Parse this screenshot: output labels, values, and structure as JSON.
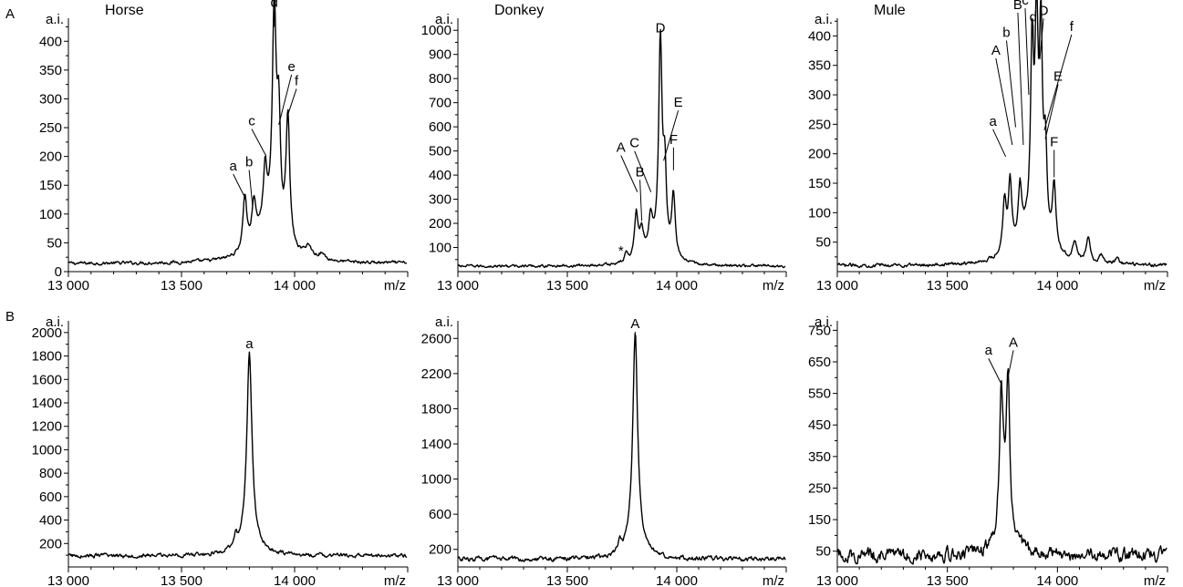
{
  "chart_data": [
    {
      "type": "line",
      "row_label": "A",
      "title": "Horse",
      "ylabel": "a.i.",
      "xlabel": "m/z",
      "xlim": [
        13000,
        14500
      ],
      "ylim": [
        0,
        440
      ],
      "xticks": [
        13000,
        13500,
        14000
      ],
      "xtick_labels": [
        "13 000",
        "13 500",
        "14 000"
      ],
      "yticks": [
        0,
        50,
        100,
        150,
        200,
        250,
        300,
        350,
        400
      ],
      "baseline": 14,
      "noise": 2,
      "peaks": [
        {
          "x": 13780,
          "h": 95,
          "w": 10
        },
        {
          "x": 13820,
          "h": 70,
          "w": 10
        },
        {
          "x": 13870,
          "h": 95,
          "w": 10
        },
        {
          "x": 13910,
          "h": 380,
          "w": 10
        },
        {
          "x": 13930,
          "h": 190,
          "w": 9
        },
        {
          "x": 13970,
          "h": 225,
          "w": 10
        },
        {
          "x": 13880,
          "h": 60,
          "w": 70
        },
        {
          "x": 14060,
          "h": 20,
          "w": 18
        },
        {
          "x": 14120,
          "h": 10,
          "w": 18
        }
      ],
      "annotations": [
        {
          "label": "a",
          "x": 13785,
          "y": 125,
          "dx": -14,
          "dy": 28
        },
        {
          "label": "b",
          "x": 13815,
          "y": 110,
          "dx": -4,
          "dy": 42
        },
        {
          "label": "c",
          "x": 13875,
          "y": 200,
          "dx": -16,
          "dy": 30
        },
        {
          "label": "d",
          "x": 13910,
          "y": 425,
          "dx": 0,
          "dy": 18
        },
        {
          "label": "e",
          "x": 13930,
          "y": 255,
          "dx": 14,
          "dy": 55
        },
        {
          "label": "f",
          "x": 13968,
          "y": 270,
          "dx": 10,
          "dy": 30
        }
      ]
    },
    {
      "type": "line",
      "row_label": "",
      "title": "Donkey",
      "ylabel": "a.i.",
      "xlabel": "m/z",
      "xlim": [
        13000,
        14500
      ],
      "ylim": [
        0,
        1050
      ],
      "xticks": [
        13000,
        13500,
        14000
      ],
      "xtick_labels": [
        "13 000",
        "13 500",
        "14 000"
      ],
      "yticks": [
        100,
        200,
        300,
        400,
        500,
        600,
        700,
        800,
        900,
        1000
      ],
      "baseline": 22,
      "noise": 4,
      "peaks": [
        {
          "x": 13770,
          "h": 40,
          "w": 8
        },
        {
          "x": 13815,
          "h": 190,
          "w": 10
        },
        {
          "x": 13840,
          "h": 100,
          "w": 10
        },
        {
          "x": 13880,
          "h": 130,
          "w": 10
        },
        {
          "x": 13925,
          "h": 860,
          "w": 9
        },
        {
          "x": 13945,
          "h": 330,
          "w": 9
        },
        {
          "x": 13985,
          "h": 260,
          "w": 10
        },
        {
          "x": 13900,
          "h": 70,
          "w": 55
        }
      ],
      "annotations": [
        {
          "label": "A",
          "x": 13820,
          "y": 330,
          "dx": -18,
          "dy": 40
        },
        {
          "label": "B",
          "x": 13840,
          "y": 210,
          "dx": -2,
          "dy": 45
        },
        {
          "label": "C",
          "x": 13882,
          "y": 330,
          "dx": -18,
          "dy": 45
        },
        {
          "label": "D",
          "x": 13925,
          "y": 920,
          "dx": 0,
          "dy": 15
        },
        {
          "label": "E",
          "x": 13940,
          "y": 460,
          "dx": 16,
          "dy": 55
        },
        {
          "label": "F",
          "x": 13985,
          "y": 420,
          "dx": 0,
          "dy": 25
        }
      ],
      "asterisk": {
        "label": "*",
        "x": 13770,
        "y": 90
      }
    },
    {
      "type": "line",
      "row_label": "",
      "title": "Mule",
      "ylabel": "a.i.",
      "xlabel": "m/z",
      "xlim": [
        13000,
        14500
      ],
      "ylim": [
        0,
        430
      ],
      "xticks": [
        13000,
        13500,
        14000
      ],
      "xtick_labels": [
        "13 000",
        "13 500",
        "14 000"
      ],
      "yticks": [
        50,
        100,
        150,
        200,
        250,
        300,
        350,
        400
      ],
      "baseline": 10,
      "noise": 2,
      "peaks": [
        {
          "x": 13760,
          "h": 90,
          "w": 10
        },
        {
          "x": 13785,
          "h": 115,
          "w": 9
        },
        {
          "x": 13830,
          "h": 90,
          "w": 9
        },
        {
          "x": 13885,
          "h": 300,
          "w": 8
        },
        {
          "x": 13905,
          "h": 340,
          "w": 8
        },
        {
          "x": 13925,
          "h": 330,
          "w": 8
        },
        {
          "x": 13945,
          "h": 150,
          "w": 9
        },
        {
          "x": 13985,
          "h": 110,
          "w": 10
        },
        {
          "x": 13880,
          "h": 60,
          "w": 70
        },
        {
          "x": 14080,
          "h": 30,
          "w": 12
        },
        {
          "x": 14140,
          "h": 42,
          "w": 10
        },
        {
          "x": 14200,
          "h": 14,
          "w": 10
        },
        {
          "x": 14270,
          "h": 10,
          "w": 10
        }
      ],
      "annotations": [
        {
          "label": "a",
          "x": 13765,
          "y": 195,
          "dx": -14,
          "dy": 30
        },
        {
          "label": "A",
          "x": 13795,
          "y": 215,
          "dx": -18,
          "dy": 95
        },
        {
          "label": "b",
          "x": 13810,
          "y": 245,
          "dx": -10,
          "dy": 95
        },
        {
          "label": "B",
          "x": 13845,
          "y": 215,
          "dx": -6,
          "dy": 145
        },
        {
          "label": "c",
          "x": 13870,
          "y": 300,
          "dx": -4,
          "dy": 95
        },
        {
          "label": "d",
          "x": 13890,
          "y": 380,
          "dx": 0,
          "dy": 25
        },
        {
          "label": "D",
          "x": 13920,
          "y": 360,
          "dx": 4,
          "dy": 45
        },
        {
          "label": "f",
          "x": 13940,
          "y": 240,
          "dx": 30,
          "dy": 105
        },
        {
          "label": "E",
          "x": 13945,
          "y": 225,
          "dx": 14,
          "dy": 60
        },
        {
          "label": "F",
          "x": 13985,
          "y": 160,
          "dx": 0,
          "dy": 30
        }
      ]
    },
    {
      "type": "line",
      "row_label": "B",
      "title": "",
      "ylabel": "a.i.",
      "xlabel": "m/z",
      "xlim": [
        13000,
        14500
      ],
      "ylim": [
        0,
        2100
      ],
      "xticks": [
        13000,
        13500,
        14000
      ],
      "xtick_labels": [
        "13 000",
        "13 500",
        "14 000"
      ],
      "yticks": [
        200,
        400,
        600,
        800,
        1000,
        1200,
        1400,
        1600,
        1800,
        2000
      ],
      "baseline": 95,
      "noise": 12,
      "peaks": [
        {
          "x": 13800,
          "h": 1570,
          "w": 13
        },
        {
          "x": 13800,
          "h": 170,
          "w": 45
        },
        {
          "x": 13740,
          "h": 90,
          "w": 6
        }
      ],
      "annotations": [
        {
          "label": "a",
          "x": 13800,
          "y": 1720,
          "dx": 0,
          "dy": 15
        }
      ]
    },
    {
      "type": "line",
      "row_label": "",
      "title": "",
      "ylabel": "a.i.",
      "xlabel": "m/z",
      "xlim": [
        13000,
        14500
      ],
      "ylim": [
        0,
        2800
      ],
      "xticks": [
        13000,
        13500,
        14000
      ],
      "xtick_labels": [
        "13 000",
        "13 500",
        "14 000"
      ],
      "yticks": [
        200,
        600,
        1000,
        1400,
        1800,
        2200,
        2600
      ],
      "baseline": 90,
      "noise": 18,
      "peaks": [
        {
          "x": 13810,
          "h": 2380,
          "w": 13
        },
        {
          "x": 13810,
          "h": 200,
          "w": 45
        },
        {
          "x": 13740,
          "h": 150,
          "w": 6
        }
      ],
      "annotations": [
        {
          "label": "A",
          "x": 13810,
          "y": 2520,
          "dx": 0,
          "dy": 15
        }
      ]
    },
    {
      "type": "line",
      "row_label": "",
      "title": "",
      "ylabel": "a.i.",
      "xlabel": "m/z",
      "xlim": [
        13000,
        14500
      ],
      "ylim": [
        0,
        780
      ],
      "xticks": [
        13000,
        13500,
        14000
      ],
      "xtick_labels": [
        "13 000",
        "13 500",
        "14 000"
      ],
      "yticks": [
        50,
        150,
        250,
        350,
        450,
        550,
        650,
        750
      ],
      "baseline": 38,
      "noise": 14,
      "peaks": [
        {
          "x": 13745,
          "h": 440,
          "w": 10
        },
        {
          "x": 13775,
          "h": 500,
          "w": 10
        },
        {
          "x": 13760,
          "h": 70,
          "w": 45
        }
      ],
      "annotations": [
        {
          "label": "a",
          "x": 13745,
          "y": 580,
          "dx": -14,
          "dy": 28
        },
        {
          "label": "A",
          "x": 13775,
          "y": 600,
          "dx": 6,
          "dy": 30
        }
      ]
    }
  ]
}
